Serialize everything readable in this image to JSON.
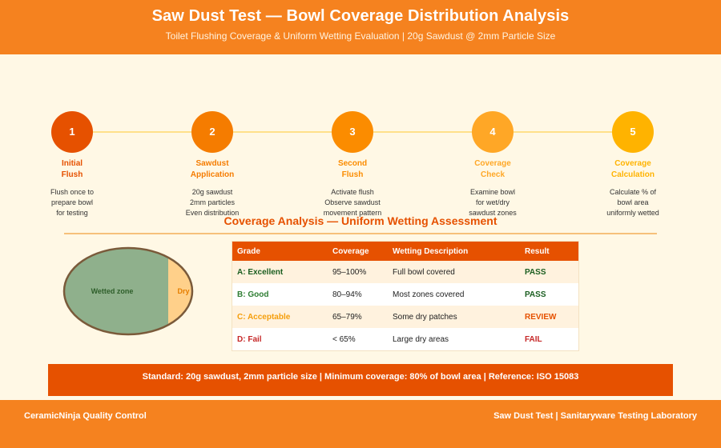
{
  "header": {
    "title": "Saw Dust Test — Bowl Coverage Distribution Analysis",
    "subtitle": "Toilet Flushing Coverage & Uniform Wetting Evaluation | 20g Sawdust @ 2mm Particle Size"
  },
  "steps": [
    {
      "number": "1",
      "label_line1": "Initial",
      "label_line2": "Flush",
      "desc": [
        "Flush once to",
        "prepare bowl",
        "for testing"
      ],
      "color": "#E65100"
    },
    {
      "number": "2",
      "label_line1": "Sawdust",
      "label_line2": "Application",
      "desc": [
        "20g sawdust",
        "2mm particles",
        "Even distribution"
      ],
      "color": "#F57C00"
    },
    {
      "number": "3",
      "label_line1": "Second",
      "label_line2": "Flush",
      "desc": [
        "Activate flush",
        "Observe sawdust",
        "movement pattern"
      ],
      "color": "#FB8C00"
    },
    {
      "number": "4",
      "label_line1": "Coverage",
      "label_line2": "Check",
      "desc": [
        "Examine bowl",
        "for wet/dry",
        "sawdust zones"
      ],
      "color": "#FFA726"
    },
    {
      "number": "5",
      "label_line1": "Coverage",
      "label_line2": "Calculation",
      "desc": [
        "Calculate % of",
        "bowl area",
        "uniformly wetted"
      ],
      "color": "#FFB300"
    }
  ],
  "analysis": {
    "title": "Coverage Analysis — Uniform Wetting Assessment",
    "bowl": {
      "wetted_label": "Wetted zone",
      "dry_label": "Dry",
      "wetted_color": "#8FB08C",
      "dry_color": "#FFD08A"
    },
    "table": {
      "headers": [
        "Grade",
        "Coverage",
        "Wetting Description",
        "Result"
      ],
      "rows": [
        {
          "grade": "A: Excellent",
          "coverage": "95–100%",
          "description": "Full bowl covered",
          "result": "PASS",
          "grade_color": "#1B5E20",
          "result_color": "#1B5E20"
        },
        {
          "grade": "B: Good",
          "coverage": "80–94%",
          "description": "Most zones covered",
          "result": "PASS",
          "grade_color": "#2E7D32",
          "result_color": "#1B5E20"
        },
        {
          "grade": "C: Acceptable",
          "coverage": "65–79%",
          "description": "Some dry patches",
          "result": "REVIEW",
          "grade_color": "#F59E0B",
          "result_color": "#E65100"
        },
        {
          "grade": "D: Fail",
          "coverage": "< 65%",
          "description": "Large dry areas",
          "result": "FAIL",
          "grade_color": "#C62828",
          "result_color": "#C62828"
        }
      ]
    }
  },
  "standard": "Standard: 20g sawdust, 2mm particle size | Minimum coverage: 80% of bowl area | Reference: ISO 15083",
  "footer": {
    "left": "CeramicNinja Quality Control",
    "right": "Saw Dust Test | Sanitaryware Testing Laboratory"
  },
  "colors": {
    "primary": "#F5821F",
    "dark": "#E65100",
    "background": "#FFF8E5"
  }
}
